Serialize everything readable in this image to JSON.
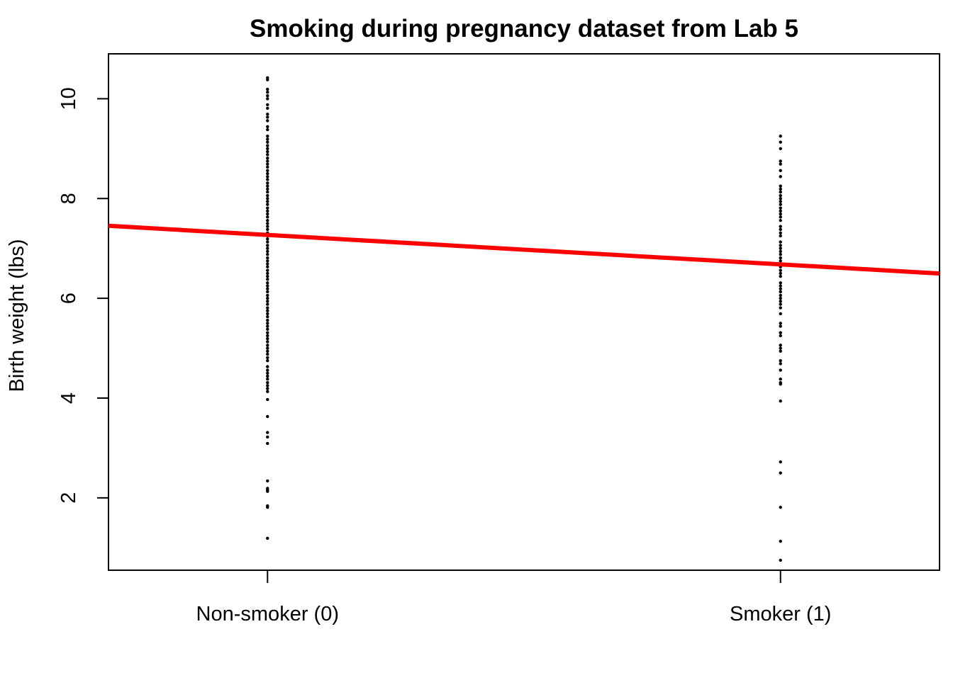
{
  "chart_data": {
    "type": "scatter",
    "title": "Smoking during pregnancy dataset from Lab 5",
    "xlabel": "",
    "ylabel": "Birth weight (lbs)",
    "xlim": [
      -0.31,
      1.31
    ],
    "ylim": [
      0.55,
      10.9
    ],
    "x_ticks": [
      {
        "value": 0,
        "label": "Non-smoker (0)"
      },
      {
        "value": 1,
        "label": "Smoker (1)"
      }
    ],
    "y_ticks": [
      2,
      4,
      6,
      8,
      10
    ],
    "grid": false,
    "series": [
      {
        "name": "Non-smoker (0)",
        "x": 0,
        "values": [
          1.19,
          1.81,
          1.84,
          2.13,
          2.16,
          2.19,
          2.34,
          3.09,
          3.22,
          3.31,
          3.63,
          3.97,
          4.13,
          4.19,
          4.25,
          4.31,
          4.38,
          4.44,
          4.5,
          4.56,
          4.63,
          4.75,
          4.81,
          4.88,
          4.94,
          5.0,
          5.06,
          5.13,
          5.19,
          5.25,
          5.31,
          5.38,
          5.44,
          5.5,
          5.56,
          5.63,
          5.69,
          5.75,
          5.81,
          5.88,
          5.94,
          6.0,
          6.06,
          6.13,
          6.19,
          6.25,
          6.31,
          6.38,
          6.44,
          6.5,
          6.56,
          6.63,
          6.69,
          6.75,
          6.81,
          6.88,
          6.94,
          7.0,
          7.06,
          7.13,
          7.19,
          7.25,
          7.31,
          7.38,
          7.44,
          7.5,
          7.56,
          7.63,
          7.69,
          7.75,
          7.81,
          7.88,
          7.94,
          8.0,
          8.06,
          8.13,
          8.19,
          8.25,
          8.31,
          8.38,
          8.44,
          8.5,
          8.56,
          8.63,
          8.69,
          8.75,
          8.81,
          8.88,
          8.94,
          9.0,
          9.06,
          9.13,
          9.19,
          9.25,
          9.38,
          9.44,
          9.56,
          9.63,
          9.69,
          9.81,
          9.88,
          10.0,
          10.06,
          10.13,
          10.19,
          10.38,
          10.42
        ]
      },
      {
        "name": "Smoker (1)",
        "x": 1,
        "values": [
          0.75,
          1.13,
          1.81,
          2.5,
          2.72,
          3.94,
          4.28,
          4.31,
          4.38,
          4.56,
          4.69,
          4.75,
          4.94,
          5.0,
          5.06,
          5.25,
          5.31,
          5.44,
          5.5,
          5.69,
          5.81,
          5.88,
          5.94,
          6.0,
          6.06,
          6.13,
          6.19,
          6.25,
          6.31,
          6.44,
          6.5,
          6.56,
          6.63,
          6.69,
          6.75,
          6.81,
          6.88,
          6.94,
          7.0,
          7.06,
          7.13,
          7.25,
          7.31,
          7.38,
          7.44,
          7.56,
          7.63,
          7.69,
          7.75,
          7.81,
          7.88,
          7.94,
          8.0,
          8.06,
          8.13,
          8.19,
          8.25,
          8.44,
          8.56,
          8.69,
          8.75,
          9.0,
          9.13,
          9.25
        ]
      }
    ],
    "regression_line": {
      "name": "Fitted regression line",
      "intercept": 7.27,
      "slope": -0.59,
      "color": "#ff0000"
    },
    "point_color": "#000000"
  }
}
